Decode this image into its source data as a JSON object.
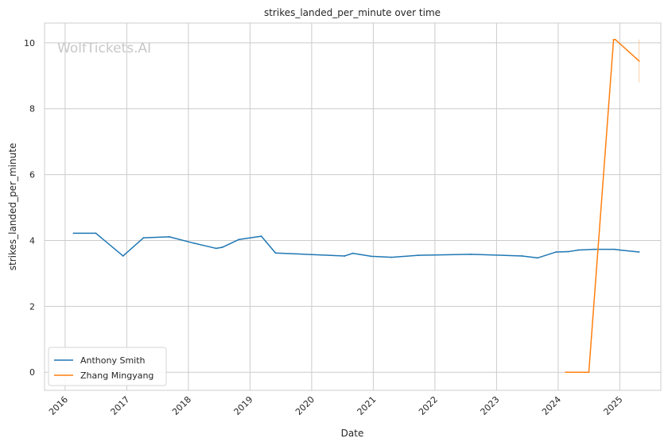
{
  "watermark": "WolfTickets.AI",
  "chart_data": {
    "type": "line",
    "title": "strikes_landed_per_minute over time",
    "xlabel": "Date",
    "ylabel": "strikes_landed_per_minute",
    "x_ticks": [
      "2016",
      "2017",
      "2018",
      "2019",
      "2020",
      "2021",
      "2022",
      "2023",
      "2024",
      "2025"
    ],
    "y_ticks": [
      "0",
      "2",
      "4",
      "6",
      "8",
      "10"
    ],
    "xlim": [
      "2015-09-01",
      "2025-09-01"
    ],
    "ylim": [
      -0.55,
      10.6
    ],
    "grid": true,
    "legend_position": "lower-left",
    "series": [
      {
        "name": "Anthony Smith",
        "color": "#1f77b4",
        "points": [
          [
            "2016-02-20",
            4.22
          ],
          [
            "2016-07-01",
            4.22
          ],
          [
            "2016-12-10",
            3.53
          ],
          [
            "2017-04-10",
            4.08
          ],
          [
            "2017-09-10",
            4.11
          ],
          [
            "2018-02-01",
            3.92
          ],
          [
            "2018-06-15",
            3.76
          ],
          [
            "2018-07-20",
            3.79
          ],
          [
            "2018-10-28",
            4.03
          ],
          [
            "2019-03-09",
            4.13
          ],
          [
            "2019-06-01",
            3.62
          ],
          [
            "2020-07-15",
            3.53
          ],
          [
            "2020-09-01",
            3.61
          ],
          [
            "2020-12-20",
            3.52
          ],
          [
            "2021-04-20",
            3.49
          ],
          [
            "2021-09-25",
            3.55
          ],
          [
            "2022-08-01",
            3.58
          ],
          [
            "2023-06-01",
            3.53
          ],
          [
            "2023-09-01",
            3.47
          ],
          [
            "2023-12-20",
            3.65
          ],
          [
            "2024-03-01",
            3.66
          ],
          [
            "2024-05-01",
            3.71
          ],
          [
            "2024-08-01",
            3.73
          ],
          [
            "2024-12-01",
            3.73
          ],
          [
            "2025-01-01",
            3.71
          ],
          [
            "2025-04-25",
            3.65
          ]
        ]
      },
      {
        "name": "Zhang Mingyang",
        "color": "#ff7f0e",
        "points": [
          [
            "2024-02-15",
            0.0
          ],
          [
            "2024-07-01",
            0.0
          ],
          [
            "2024-11-25",
            10.1
          ],
          [
            "2024-12-05",
            10.1
          ],
          [
            "2025-04-25",
            9.45
          ]
        ]
      }
    ]
  }
}
